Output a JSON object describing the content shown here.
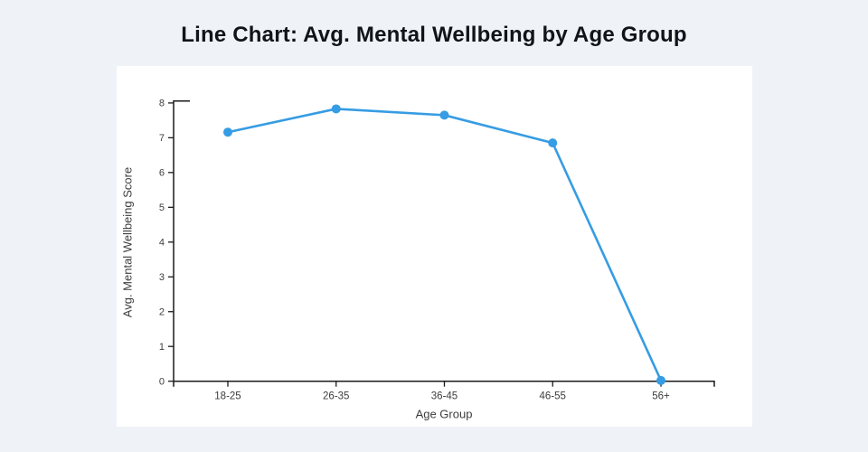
{
  "page": {
    "background_color": "#eff3f8",
    "panel_color": "#ffffff",
    "title_color": "#111418",
    "axis_line_color": "#1a1a1a",
    "tick_text_color": "#3d3d3d"
  },
  "title": "Line Chart: Avg. Mental Wellbeing by Age Group",
  "chart_data": {
    "type": "line",
    "categories": [
      "18-25",
      "26-35",
      "36-45",
      "46-55",
      "56+"
    ],
    "values": [
      7.16,
      7.83,
      7.65,
      6.85,
      0.02
    ],
    "title": "Line Chart: Avg. Mental Wellbeing by Age Group",
    "xlabel": "Age Group",
    "ylabel": "Avg. Mental Wellbeing Score",
    "ylim": [
      0,
      8
    ],
    "yticks": [
      0,
      1,
      2,
      3,
      4,
      5,
      6,
      7,
      8
    ],
    "grid": false,
    "legend": null,
    "line_color": "#369ce3",
    "marker": "circle",
    "marker_radius": 5
  }
}
